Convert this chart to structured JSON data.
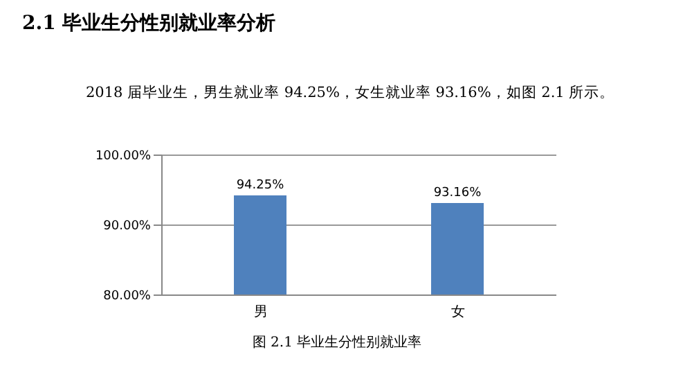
{
  "chart_data": {
    "type": "bar",
    "title": "2.1  毕业生分性别就业率分析",
    "subtitle": "2018 届毕业生，男生就业率 94.25%，女生就业率 93.16%，如图 2.1 所示。",
    "annotations": [
      "图 2.1  毕业生分性别就业率"
    ],
    "categories": [
      "男",
      "女"
    ],
    "values": [
      94.25,
      93.16
    ],
    "color": "#4f81bd",
    "value_labels": [
      "94.25%",
      "93.16%"
    ],
    "ylim": [
      80,
      100
    ],
    "yticks": [
      {
        "value": 80,
        "label": "80.00%"
      },
      {
        "value": 90,
        "label": "90.00%"
      },
      {
        "value": 100,
        "label": "100.00%"
      }
    ],
    "grid": "y"
  }
}
